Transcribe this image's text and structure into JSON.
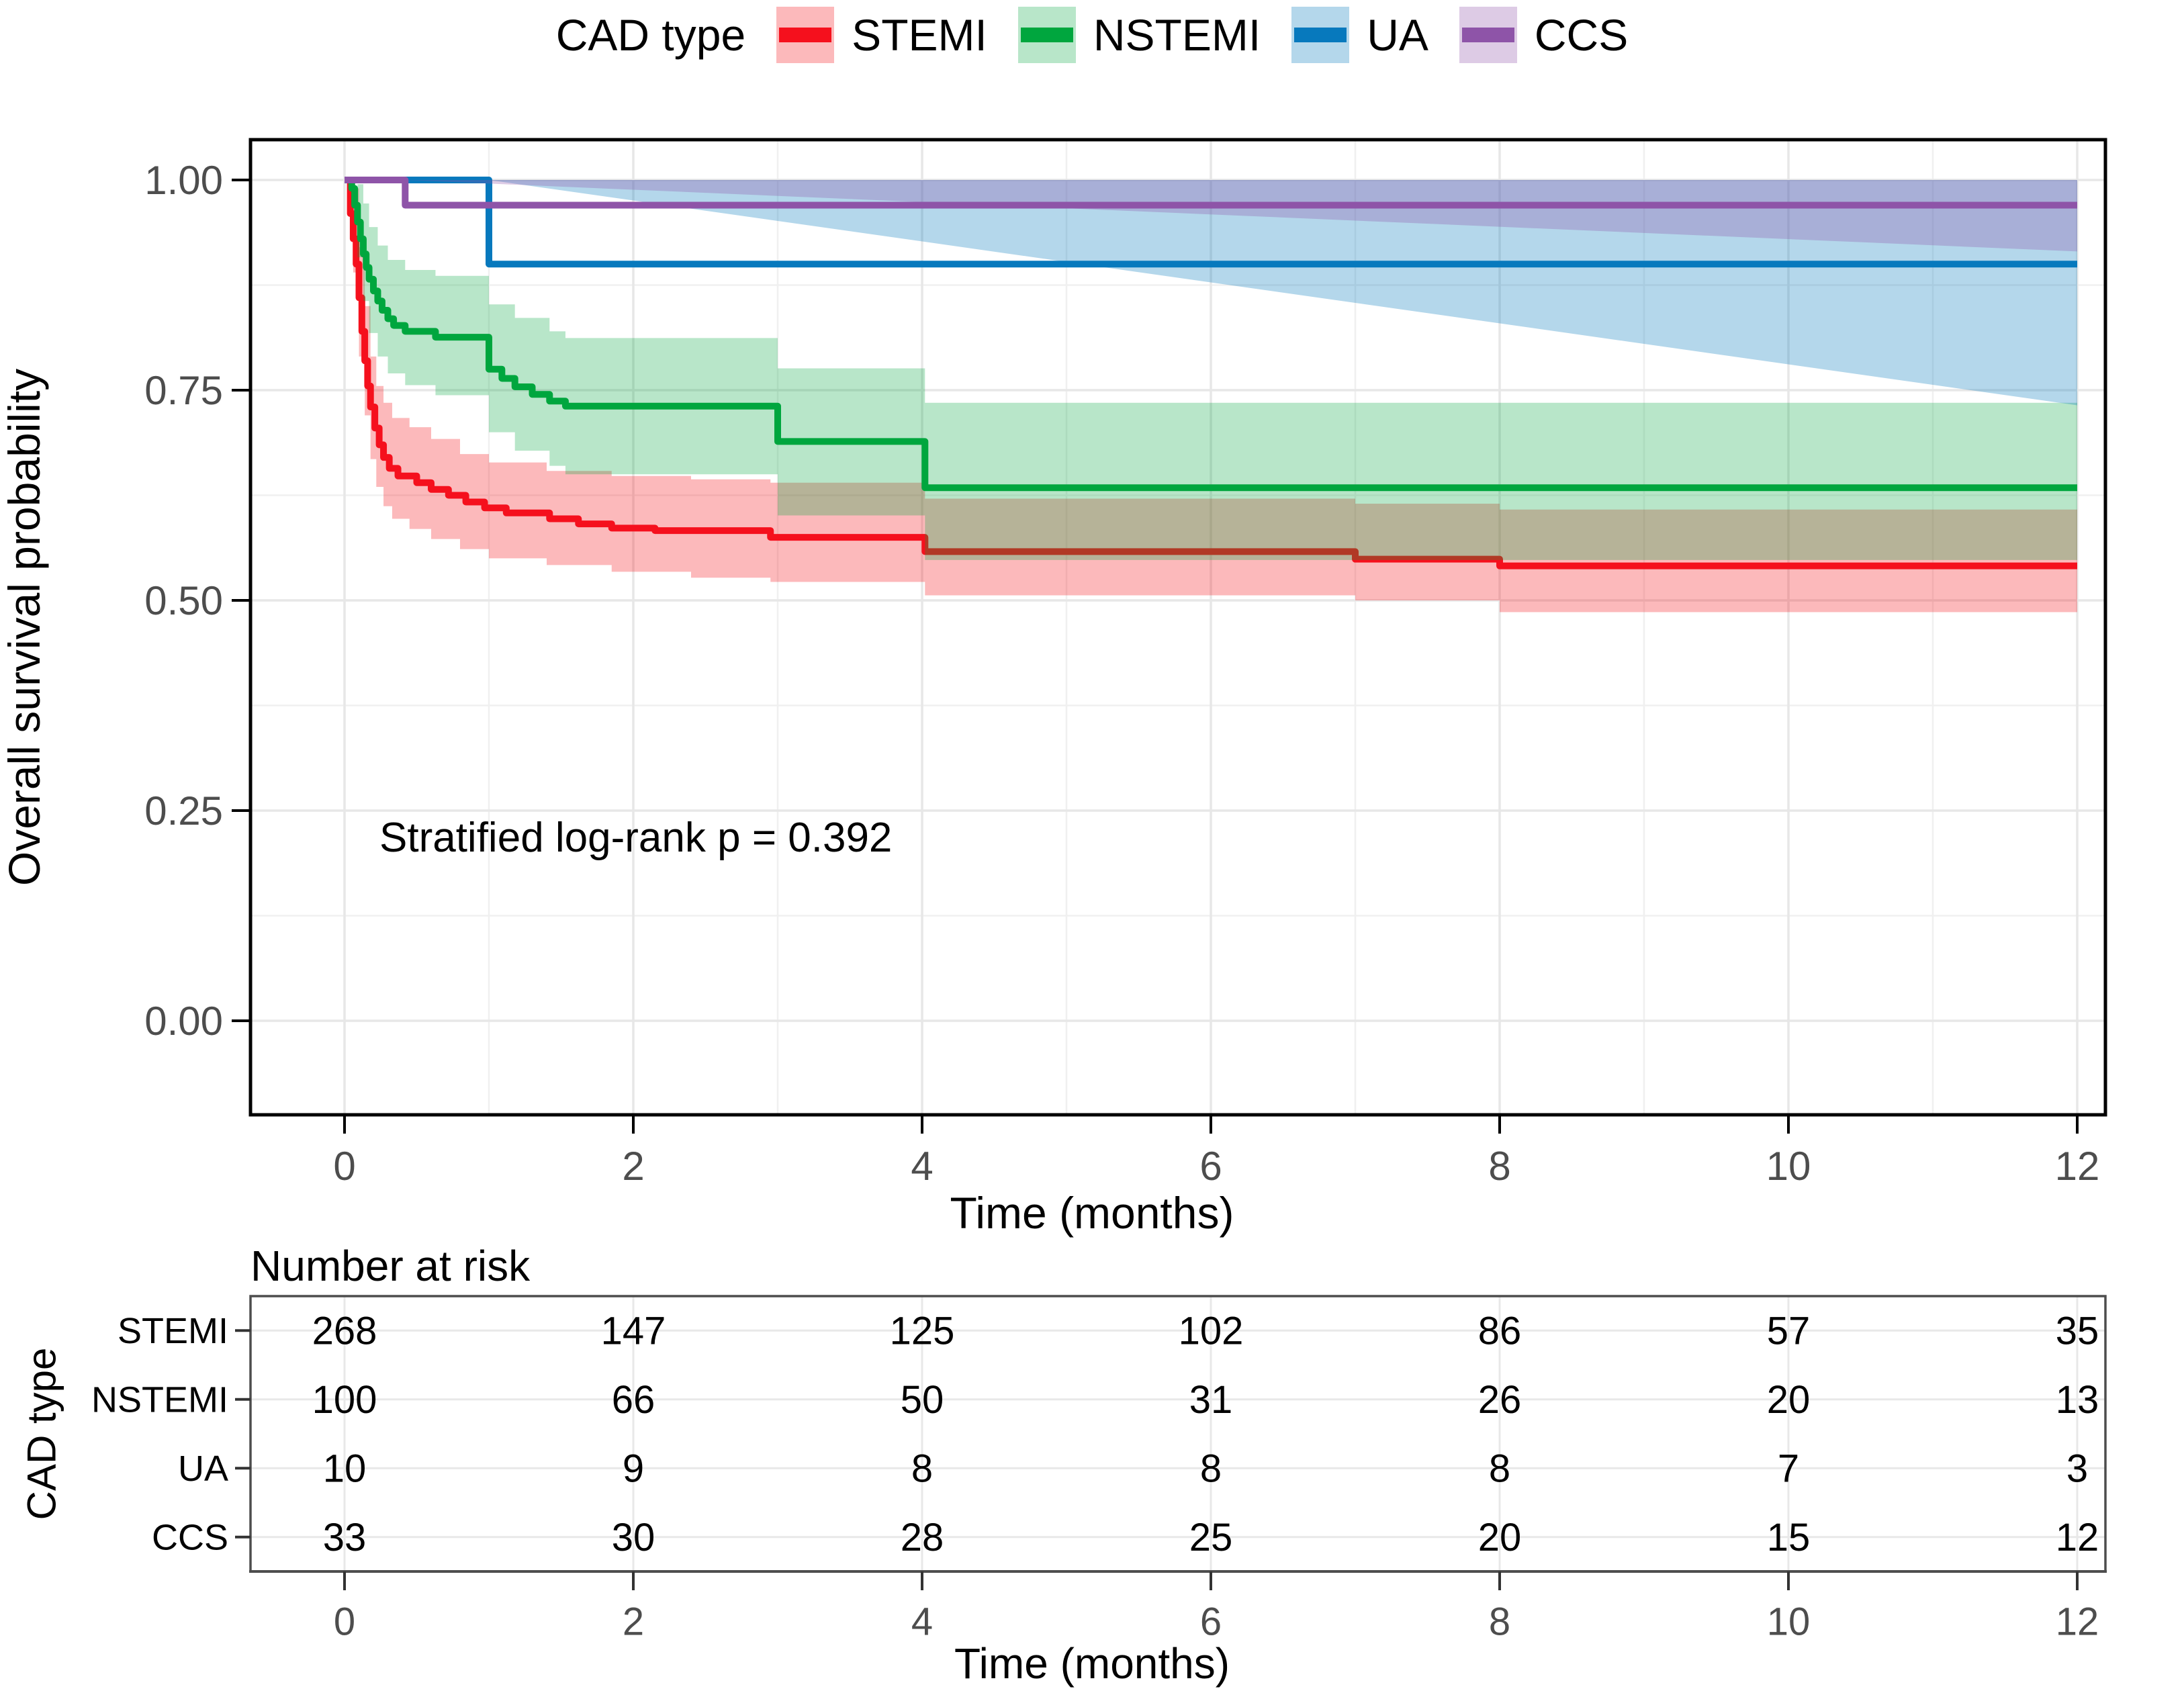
{
  "chart_data": {
    "type": "line",
    "subtype": "kaplan_meier_step_with_ci",
    "legend_title": "CAD type",
    "legend_position": "top",
    "xlabel": "Time (months)",
    "ylabel": "Overall survival probability",
    "xlim": [
      0,
      12
    ],
    "ylim": [
      0,
      1
    ],
    "x_major_ticks": [
      0,
      2,
      4,
      6,
      8,
      10,
      12
    ],
    "x_minor_ticks": [
      1,
      3,
      5,
      7,
      9,
      11
    ],
    "y_major_ticks": [
      1.0,
      0.75,
      0.5,
      0.25,
      0.0
    ],
    "y_major_tick_labels": [
      "1.00",
      "0.75",
      "0.50",
      "0.25",
      "0.00"
    ],
    "y_minor_ticks": [
      0.875,
      0.625,
      0.375,
      0.125
    ],
    "grid": "on",
    "annotation": "Stratified log-rank p = 0.392",
    "series": [
      {
        "name": "STEMI",
        "color": "#f5101d",
        "fill": "rgba(246,22,31,0.30)",
        "steps": [
          [
            0,
            1
          ],
          [
            0.04,
            0.96
          ],
          [
            0.06,
            0.93
          ],
          [
            0.08,
            0.9
          ],
          [
            0.1,
            0.86
          ],
          [
            0.12,
            0.82
          ],
          [
            0.14,
            0.785
          ],
          [
            0.16,
            0.755
          ],
          [
            0.18,
            0.73
          ],
          [
            0.21,
            0.705
          ],
          [
            0.24,
            0.685
          ],
          [
            0.27,
            0.67
          ],
          [
            0.31,
            0.657
          ],
          [
            0.37,
            0.648
          ],
          [
            0.5,
            0.64
          ],
          [
            0.6,
            0.632
          ],
          [
            0.72,
            0.625
          ],
          [
            0.84,
            0.617
          ],
          [
            0.97,
            0.61
          ],
          [
            1.12,
            0.604
          ],
          [
            1.42,
            0.597
          ],
          [
            1.62,
            0.591
          ],
          [
            1.85,
            0.586
          ],
          [
            2.15,
            0.583
          ],
          [
            2.95,
            0.575
          ],
          [
            4.02,
            0.558
          ],
          [
            7.0,
            0.549
          ],
          [
            8.0,
            0.541
          ],
          [
            12,
            0.541
          ]
        ],
        "ci_upper": [
          [
            0,
            1
          ],
          [
            0.06,
            0.99
          ],
          [
            0.1,
            0.92
          ],
          [
            0.14,
            0.85
          ],
          [
            0.18,
            0.79
          ],
          [
            0.22,
            0.755
          ],
          [
            0.27,
            0.735
          ],
          [
            0.33,
            0.717
          ],
          [
            0.45,
            0.706
          ],
          [
            0.6,
            0.692
          ],
          [
            0.8,
            0.674
          ],
          [
            1.0,
            0.664
          ],
          [
            1.4,
            0.654
          ],
          [
            1.85,
            0.648
          ],
          [
            2.4,
            0.644
          ],
          [
            2.95,
            0.64
          ],
          [
            4.02,
            0.621
          ],
          [
            7.0,
            0.615
          ],
          [
            8.0,
            0.608
          ],
          [
            12,
            0.608
          ]
        ],
        "ci_lower": [
          [
            0,
            1
          ],
          [
            0.06,
            0.89
          ],
          [
            0.1,
            0.79
          ],
          [
            0.14,
            0.72
          ],
          [
            0.18,
            0.668
          ],
          [
            0.22,
            0.635
          ],
          [
            0.27,
            0.612
          ],
          [
            0.33,
            0.597
          ],
          [
            0.45,
            0.585
          ],
          [
            0.6,
            0.573
          ],
          [
            0.8,
            0.561
          ],
          [
            1.0,
            0.55
          ],
          [
            1.4,
            0.542
          ],
          [
            1.85,
            0.534
          ],
          [
            2.4,
            0.527
          ],
          [
            2.95,
            0.522
          ],
          [
            4.02,
            0.506
          ],
          [
            7.0,
            0.5
          ],
          [
            8.0,
            0.486
          ],
          [
            12,
            0.486
          ]
        ]
      },
      {
        "name": "NSTEMI",
        "color": "#00a63e",
        "fill": "rgba(0,166,62,0.28)",
        "steps": [
          [
            0,
            1
          ],
          [
            0.05,
            0.99
          ],
          [
            0.07,
            0.97
          ],
          [
            0.09,
            0.95
          ],
          [
            0.11,
            0.93
          ],
          [
            0.13,
            0.912
          ],
          [
            0.15,
            0.896
          ],
          [
            0.17,
            0.882
          ],
          [
            0.2,
            0.868
          ],
          [
            0.23,
            0.856
          ],
          [
            0.26,
            0.845
          ],
          [
            0.3,
            0.835
          ],
          [
            0.34,
            0.827
          ],
          [
            0.42,
            0.82
          ],
          [
            0.63,
            0.813
          ],
          [
            1.0,
            0.775
          ],
          [
            1.09,
            0.764
          ],
          [
            1.18,
            0.754
          ],
          [
            1.3,
            0.745
          ],
          [
            1.42,
            0.737
          ],
          [
            1.53,
            0.731
          ],
          [
            3.0,
            0.689
          ],
          [
            4.02,
            0.634
          ],
          [
            12,
            0.634
          ]
        ],
        "ci_upper": [
          [
            0,
            1
          ],
          [
            0.09,
            0.995
          ],
          [
            0.13,
            0.972
          ],
          [
            0.17,
            0.944
          ],
          [
            0.23,
            0.922
          ],
          [
            0.3,
            0.905
          ],
          [
            0.42,
            0.893
          ],
          [
            0.63,
            0.886
          ],
          [
            1.0,
            0.852
          ],
          [
            1.18,
            0.836
          ],
          [
            1.42,
            0.82
          ],
          [
            1.53,
            0.812
          ],
          [
            3.0,
            0.776
          ],
          [
            4.02,
            0.735
          ],
          [
            12,
            0.735
          ]
        ],
        "ci_lower": [
          [
            0,
            1
          ],
          [
            0.09,
            0.908
          ],
          [
            0.13,
            0.856
          ],
          [
            0.17,
            0.818
          ],
          [
            0.23,
            0.79
          ],
          [
            0.3,
            0.77
          ],
          [
            0.42,
            0.756
          ],
          [
            0.63,
            0.744
          ],
          [
            1.0,
            0.7
          ],
          [
            1.18,
            0.678
          ],
          [
            1.42,
            0.66
          ],
          [
            1.53,
            0.65
          ],
          [
            3.0,
            0.601
          ],
          [
            4.02,
            0.548
          ],
          [
            12,
            0.548
          ]
        ]
      },
      {
        "name": "UA",
        "color": "#0779bd",
        "fill": "rgba(7,121,189,0.30)",
        "steps": [
          [
            0,
            1
          ],
          [
            1.0,
            0.9
          ],
          [
            12,
            0.9
          ]
        ],
        "ci_upper": [
          [
            1.0,
            1.0
          ],
          [
            12,
            1.0
          ]
        ],
        "ci_lower": [
          [
            1.0,
            0.732
          ],
          [
            12,
            0.732
          ]
        ]
      },
      {
        "name": "CCS",
        "color": "#8e54a8",
        "fill": "rgba(142,84,168,0.30)",
        "steps": [
          [
            0,
            1
          ],
          [
            0.42,
            0.97
          ],
          [
            12,
            0.97
          ]
        ],
        "ci_upper": [
          [
            0.42,
            1.0
          ],
          [
            12,
            1.0
          ]
        ],
        "ci_lower": [
          [
            0.42,
            0.915
          ],
          [
            12,
            0.915
          ]
        ]
      }
    ]
  },
  "risk_table": {
    "title": "Number at risk",
    "ylabel": "CAD type",
    "xlabel": "Time (months)",
    "times": [
      0,
      2,
      4,
      6,
      8,
      10,
      12
    ],
    "rows": [
      {
        "label": "STEMI",
        "values": [
          268,
          147,
          125,
          102,
          86,
          57,
          35
        ]
      },
      {
        "label": "NSTEMI",
        "values": [
          100,
          66,
          50,
          31,
          26,
          20,
          13
        ]
      },
      {
        "label": "UA",
        "values": [
          10,
          9,
          8,
          8,
          8,
          7,
          3
        ]
      },
      {
        "label": "CCS",
        "values": [
          33,
          30,
          28,
          25,
          20,
          15,
          12
        ]
      }
    ]
  },
  "colors": {
    "tick_label": "#4d4d4d",
    "grid_major": "#e7e7e7",
    "grid_minor": "#f0f0f0",
    "panel_border": "#000000",
    "risk_border": "#4d4d4d"
  }
}
